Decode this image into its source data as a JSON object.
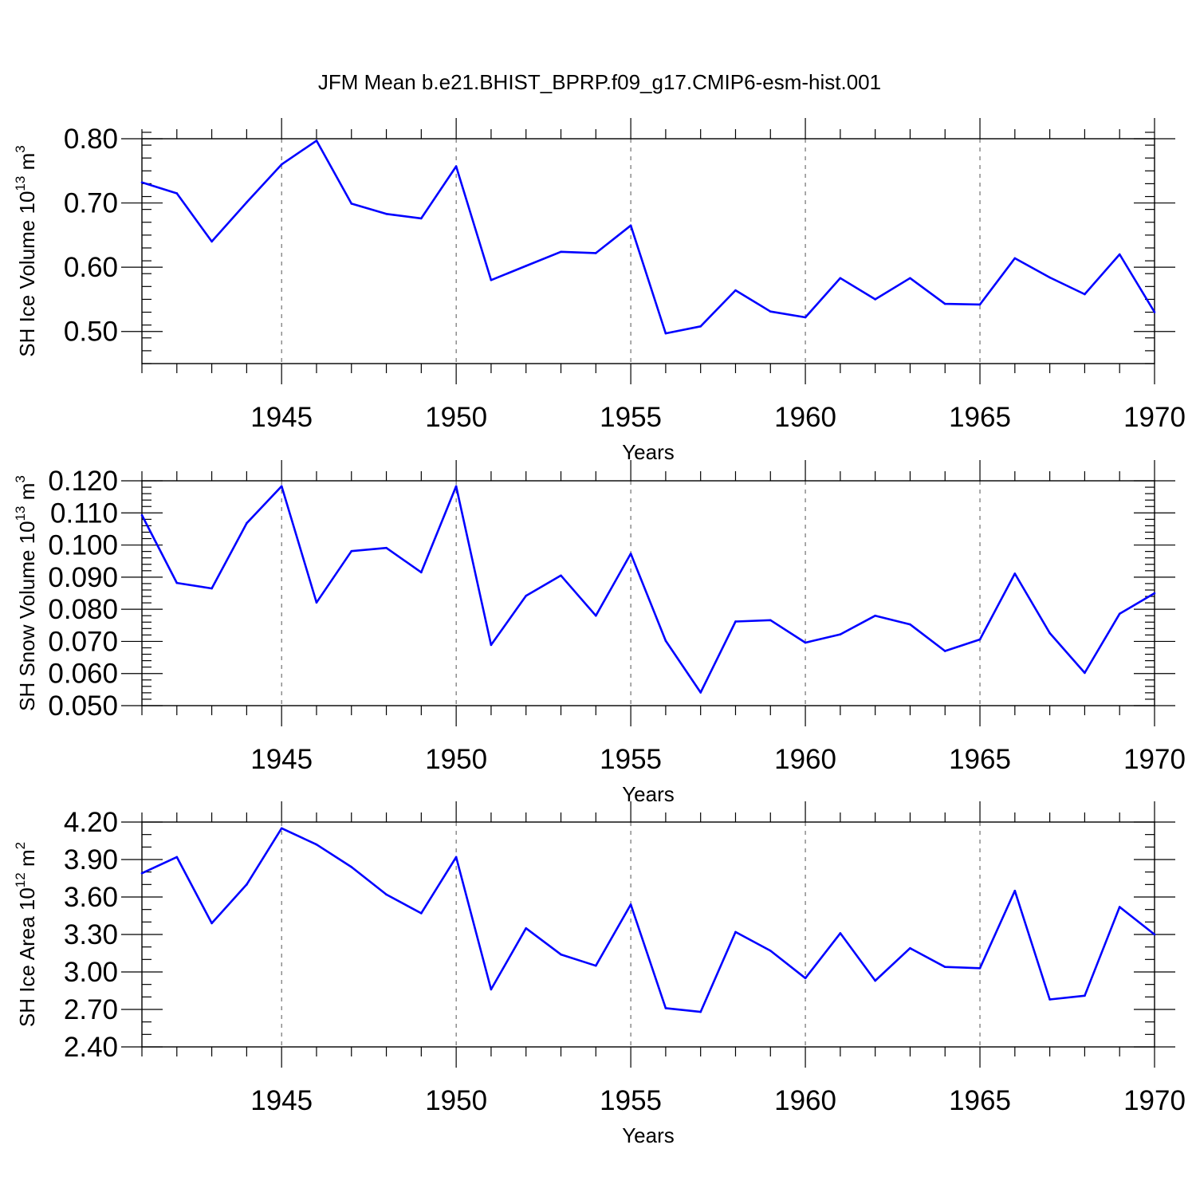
{
  "figure": {
    "title": "JFM Mean b.e21.BHIST_BPRP.f09_g17.CMIP6-esm-hist.001"
  },
  "chart_data": [
    {
      "type": "line",
      "title": "",
      "xlabel": "Years",
      "ylabel_base": "SH Ice Volume 10",
      "ylabel_exp": "13",
      "ylabel_unit": " m",
      "ylabel_unit_exp": "3",
      "xlim": [
        1941,
        1970
      ],
      "ylim": [
        0.45,
        0.8
      ],
      "yticks": [
        0.5,
        0.6,
        0.7,
        0.8
      ],
      "ytick_labels": [
        "0.50",
        "0.60",
        "0.70",
        "0.80"
      ],
      "yminor_step": 0.02,
      "xticks": [
        1945,
        1950,
        1955,
        1960,
        1965,
        1970
      ],
      "xtick_labels": [
        "1945",
        "1950",
        "1955",
        "1960",
        "1965",
        "1970"
      ],
      "grid": "vertical dashed at major x ticks",
      "line_color": "#0000ff",
      "x": [
        1941,
        1942,
        1943,
        1944,
        1945,
        1946,
        1947,
        1948,
        1949,
        1950,
        1951,
        1952,
        1953,
        1954,
        1955,
        1956,
        1957,
        1958,
        1959,
        1960,
        1961,
        1962,
        1963,
        1964,
        1965,
        1966,
        1967,
        1968,
        1969,
        1970
      ],
      "values": [
        0.732,
        0.715,
        0.64,
        0.701,
        0.76,
        0.797,
        0.699,
        0.683,
        0.676,
        0.757,
        0.58,
        0.602,
        0.624,
        0.622,
        0.665,
        0.497,
        0.508,
        0.564,
        0.531,
        0.522,
        0.583,
        0.55,
        0.583,
        0.543,
        0.542,
        0.614,
        0.584,
        0.558,
        0.62,
        0.53
      ]
    },
    {
      "type": "line",
      "title": "",
      "xlabel": "Years",
      "ylabel_base": "SH Snow Volume 10",
      "ylabel_exp": "13",
      "ylabel_unit": " m",
      "ylabel_unit_exp": "3",
      "xlim": [
        1941,
        1970
      ],
      "ylim": [
        0.05,
        0.12
      ],
      "yticks": [
        0.05,
        0.06,
        0.07,
        0.08,
        0.09,
        0.1,
        0.11,
        0.12
      ],
      "ytick_labels": [
        "0.050",
        "0.060",
        "0.070",
        "0.080",
        "0.090",
        "0.100",
        "0.110",
        "0.120"
      ],
      "yminor_step": 0.002,
      "xticks": [
        1945,
        1950,
        1955,
        1960,
        1965,
        1970
      ],
      "xtick_labels": [
        "1945",
        "1950",
        "1955",
        "1960",
        "1965",
        "1970"
      ],
      "grid": "vertical dashed at major x ticks",
      "line_color": "#0000ff",
      "x": [
        1941,
        1942,
        1943,
        1944,
        1945,
        1946,
        1947,
        1948,
        1949,
        1950,
        1951,
        1952,
        1953,
        1954,
        1955,
        1956,
        1957,
        1958,
        1959,
        1960,
        1961,
        1962,
        1963,
        1964,
        1965,
        1966,
        1967,
        1968,
        1969,
        1970
      ],
      "values": [
        0.1093,
        0.0882,
        0.0865,
        0.1068,
        0.1183,
        0.0821,
        0.0981,
        0.0991,
        0.0915,
        0.1183,
        0.0689,
        0.0842,
        0.0905,
        0.078,
        0.0973,
        0.0702,
        0.0541,
        0.0762,
        0.0766,
        0.0696,
        0.0722,
        0.078,
        0.0753,
        0.067,
        0.0706,
        0.0911,
        0.0726,
        0.0602,
        0.0786,
        0.085
      ]
    },
    {
      "type": "line",
      "title": "",
      "xlabel": "Years",
      "ylabel_base": "SH Ice Area 10",
      "ylabel_exp": "12",
      "ylabel_unit": " m",
      "ylabel_unit_exp": "2",
      "xlim": [
        1941,
        1970
      ],
      "ylim": [
        2.4,
        4.2
      ],
      "yticks": [
        2.4,
        2.7,
        3.0,
        3.3,
        3.6,
        3.9,
        4.2
      ],
      "ytick_labels": [
        "2.40",
        "2.70",
        "3.00",
        "3.30",
        "3.60",
        "3.90",
        "4.20"
      ],
      "yminor_step": 0.1,
      "xticks": [
        1945,
        1950,
        1955,
        1960,
        1965,
        1970
      ],
      "xtick_labels": [
        "1945",
        "1950",
        "1955",
        "1960",
        "1965",
        "1970"
      ],
      "grid": "vertical dashed at major x ticks",
      "line_color": "#0000ff",
      "x": [
        1941,
        1942,
        1943,
        1944,
        1945,
        1946,
        1947,
        1948,
        1949,
        1950,
        1951,
        1952,
        1953,
        1954,
        1955,
        1956,
        1957,
        1958,
        1959,
        1960,
        1961,
        1962,
        1963,
        1964,
        1965,
        1966,
        1967,
        1968,
        1969,
        1970
      ],
      "values": [
        3.79,
        3.92,
        3.39,
        3.7,
        4.15,
        4.02,
        3.84,
        3.62,
        3.47,
        3.92,
        2.86,
        3.35,
        3.14,
        3.05,
        3.54,
        2.71,
        2.68,
        3.32,
        3.17,
        2.95,
        3.31,
        2.93,
        3.19,
        3.04,
        3.03,
        3.65,
        2.78,
        2.81,
        3.52,
        3.3
      ]
    }
  ]
}
